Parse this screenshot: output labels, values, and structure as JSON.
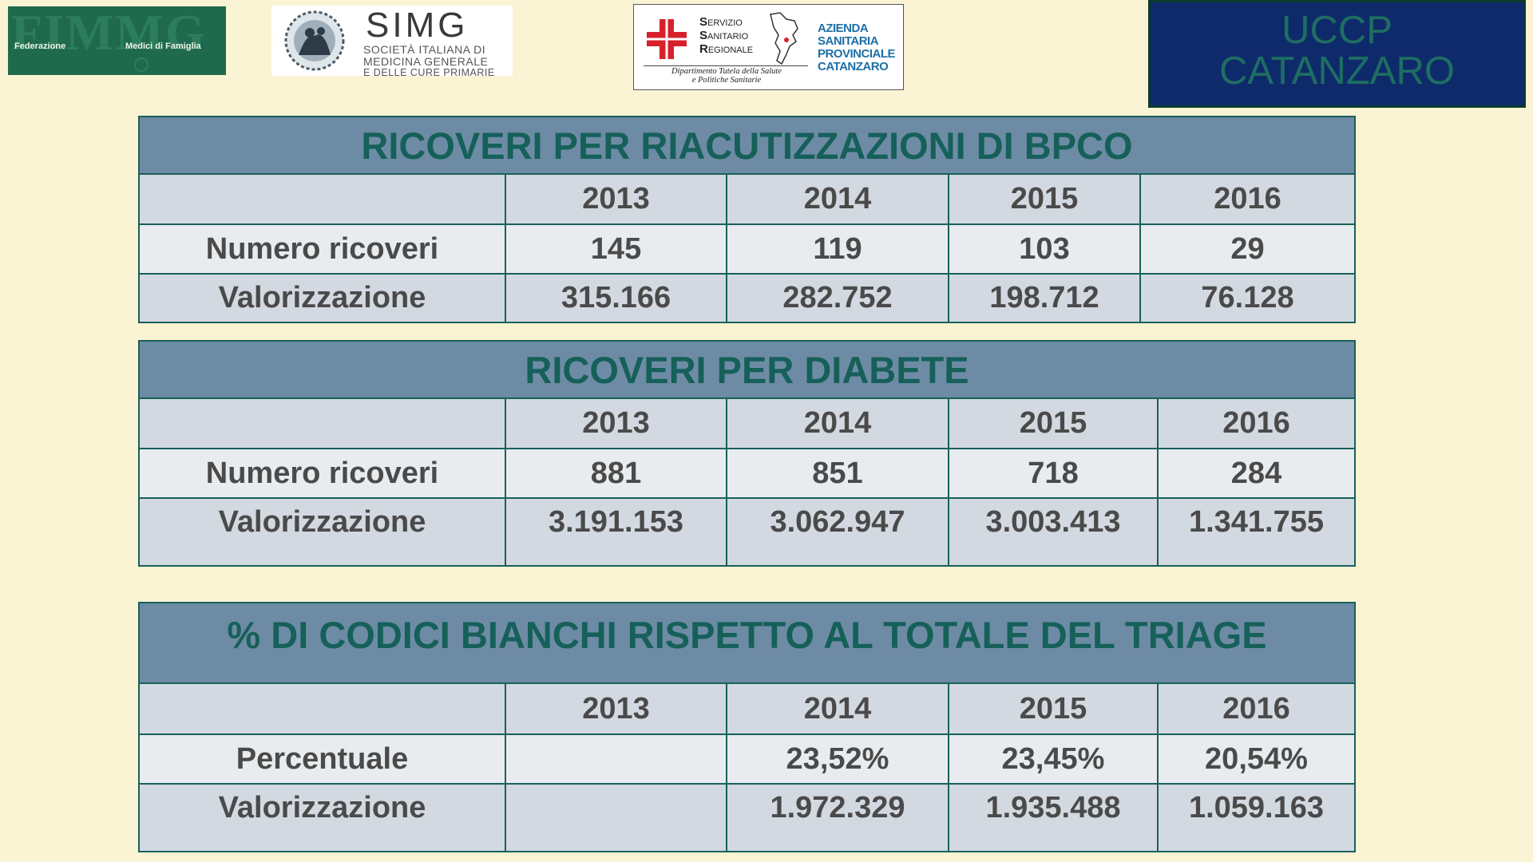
{
  "logos": {
    "fimmg": {
      "big_text": "FIMMG",
      "left_text": "Federazione",
      "right_text": "Medici di Famiglia"
    },
    "simg": {
      "title": "SIMG",
      "line1": "SOCIETÀ ITALIANA DI",
      "line2": "MEDICINA GENERALE",
      "line3": "E DELLE CURE PRIMARIE"
    },
    "asp": {
      "ssr_s": "S",
      "ssr_s_rest": "ERVIZIO",
      "ssr_a": "S",
      "ssr_a_rest": "ANITARIO",
      "ssr_r": "R",
      "ssr_r_rest": "EGIONALE",
      "azienda_1": "AZIENDA",
      "azienda_2": "SANITARIA",
      "azienda_3": "PROVINCIALE",
      "azienda_4": "CATANZARO",
      "dipartimento_1": "Dipartimento Tutela della Salute",
      "dipartimento_2": "e Politiche Sanitarie"
    },
    "uccp": {
      "line1": "UCCP",
      "line2": "CATANZARO"
    }
  },
  "colors": {
    "background": "#faf3d4",
    "title_band": "#6e8ba5",
    "title_text": "#16605a",
    "border": "#17615a",
    "cell_text": "#4a4a4a"
  },
  "tables": [
    {
      "title": "RICOVERI PER RIACUTIZZAZIONI DI BPCO",
      "years": [
        "2013",
        "2014",
        "2015",
        "2016"
      ],
      "rows": [
        {
          "label": "Numero ricoveri",
          "values": [
            "145",
            "119",
            "103",
            "29"
          ]
        },
        {
          "label": "Valorizzazione",
          "values": [
            "315.166",
            "282.752",
            "198.712",
            "76.128"
          ]
        }
      ]
    },
    {
      "title": "RICOVERI PER DIABETE",
      "years": [
        "2013",
        "2014",
        "2015",
        "2016"
      ],
      "rows": [
        {
          "label": "Numero ricoveri",
          "values": [
            "881",
            "851",
            "718",
            "284"
          ]
        },
        {
          "label": "Valorizzazione",
          "values": [
            "3.191.153",
            "3.062.947",
            "3.003.413",
            "1.341.755"
          ]
        }
      ]
    },
    {
      "title": "%  DI CODICI BIANCHI RISPETTO AL TOTALE DEL TRIAGE",
      "years": [
        "2013",
        "2014",
        "2015",
        "2016"
      ],
      "rows": [
        {
          "label": "Percentuale",
          "values": [
            "",
            "23,52%",
            "23,45%",
            "20,54%"
          ]
        },
        {
          "label": "Valorizzazione",
          "values": [
            "",
            "1.972.329",
            "1.935.488",
            "1.059.163"
          ]
        }
      ]
    }
  ]
}
